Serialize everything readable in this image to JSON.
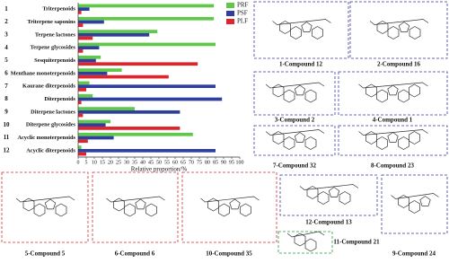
{
  "chart_data": {
    "type": "barh",
    "x_label": "Relative proportion/%",
    "category_numbers": [
      "1",
      "2",
      "3",
      "4",
      "5",
      "6",
      "7",
      "8",
      "9",
      "10",
      "11",
      "12"
    ],
    "categories": [
      "Triterpenoids",
      "Triterpene saponins",
      "Terpene lactones",
      "Terpene glycosides",
      "Sesquiterpenoids",
      "Menthane monoterpenoids",
      "Kaurane diterpenoids",
      "Diterpenoids",
      "Diterpene lactones",
      "Diterpene glycosides",
      "Acyclic monoterpenoids",
      "Acyclic diterpenoids"
    ],
    "series": [
      {
        "name": "PRF",
        "color": "#5fc84a",
        "values": [
          84,
          84,
          49,
          85,
          14,
          27,
          7,
          9,
          35,
          20,
          71,
          2
        ]
      },
      {
        "name": "PSF",
        "color": "#2f3f9e",
        "values": [
          7,
          16,
          44,
          13,
          11,
          18,
          85,
          89,
          63,
          17,
          22,
          85
        ]
      },
      {
        "name": "PLF",
        "color": "#e0242c",
        "values": [
          2,
          3,
          9,
          3,
          74,
          56,
          5,
          2,
          3,
          63,
          6,
          5
        ]
      }
    ],
    "xlim": [
      0,
      100
    ],
    "xticks": [
      0,
      5,
      10,
      15,
      20,
      25,
      30,
      35,
      40,
      45,
      50,
      55,
      60,
      65,
      70,
      75,
      80,
      85,
      90,
      95,
      100
    ],
    "legend": "upper right"
  },
  "structures": [
    {
      "label": "1-Compound 12"
    },
    {
      "label": "2-Compound 16"
    },
    {
      "label": "3-Compound 2"
    },
    {
      "label": "4-Compound 1"
    },
    {
      "label": "7-Compound 32"
    },
    {
      "label": "8-Compound 23"
    },
    {
      "label": "5-Compound 5"
    },
    {
      "label": "6-Compound 6"
    },
    {
      "label": "10-Compound 35"
    },
    {
      "label": "12-Compound 13"
    },
    {
      "label": "11-Compound 21"
    },
    {
      "label": "9-Compound 24"
    }
  ]
}
